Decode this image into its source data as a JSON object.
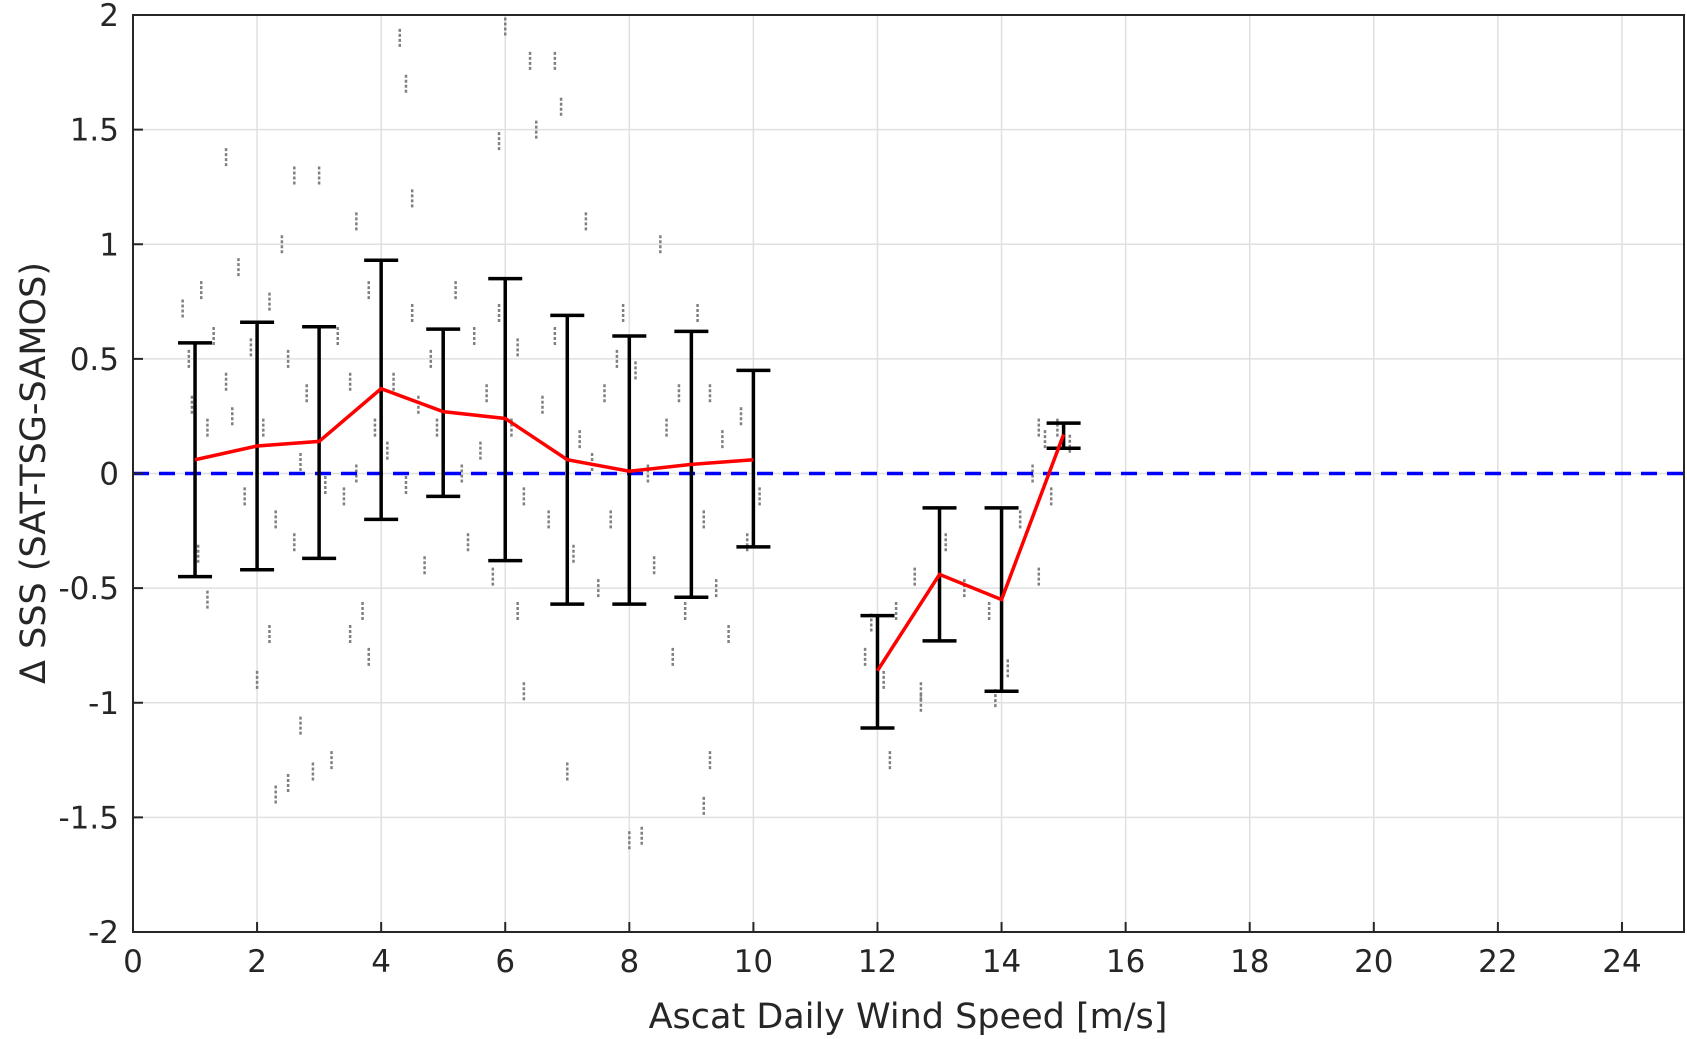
{
  "chart_data": {
    "type": "scatter",
    "xlabel": "Ascat Daily Wind Speed [m/s]",
    "ylabel": "Δ SSS (SAT-TSG-SAMOS)",
    "xlim": [
      0,
      25
    ],
    "ylim": [
      -2,
      2
    ],
    "x_ticks": [
      0,
      2,
      4,
      6,
      8,
      10,
      12,
      14,
      16,
      18,
      20,
      22,
      24
    ],
    "x_tick_labels": [
      "0",
      "2",
      "4",
      "6",
      "8",
      "10",
      "12",
      "14",
      "16",
      "18",
      "20",
      "22",
      "24"
    ],
    "y_ticks": [
      2,
      1.5,
      1,
      0.5,
      0,
      -0.5,
      -1,
      -1.5,
      -2
    ],
    "y_tick_labels": [
      "2",
      "1.5",
      "1",
      "0.5",
      "0",
      "-0.5",
      "-1",
      "-1.5",
      "-2"
    ],
    "grid": true,
    "zero_line": {
      "y": 0,
      "color": "#0000ff",
      "style": "dashed"
    },
    "mean_series": {
      "color": "#ff0000",
      "x": [
        1,
        2,
        3,
        4,
        5,
        6,
        7,
        8,
        9,
        10,
        12,
        13,
        14,
        15
      ],
      "y": [
        0.06,
        0.12,
        0.14,
        0.37,
        0.27,
        0.24,
        0.06,
        0.01,
        0.04,
        0.06,
        -0.86,
        -0.44,
        -0.55,
        0.17
      ]
    },
    "error_bars": {
      "color": "#000000",
      "x": [
        1,
        2,
        3,
        4,
        5,
        6,
        7,
        8,
        9,
        10,
        12,
        13,
        14,
        15
      ],
      "upper": [
        0.57,
        0.66,
        0.64,
        0.93,
        0.63,
        0.85,
        0.69,
        0.6,
        0.62,
        0.45,
        -0.62,
        -0.15,
        -0.15,
        0.22
      ],
      "lower": [
        -0.45,
        -0.42,
        -0.37,
        -0.2,
        -0.1,
        -0.38,
        -0.57,
        -0.57,
        -0.54,
        -0.32,
        -1.11,
        -0.73,
        -0.95,
        0.11
      ]
    },
    "scatter_color": "#808080",
    "scatter_points": [
      [
        0.8,
        0.72
      ],
      [
        0.9,
        0.5
      ],
      [
        0.95,
        0.3
      ],
      [
        1.0,
        -0.2
      ],
      [
        1.05,
        -0.35
      ],
      [
        1.1,
        0.8
      ],
      [
        1.2,
        0.2
      ],
      [
        1.3,
        0.6
      ],
      [
        1.5,
        1.38
      ],
      [
        1.5,
        0.4
      ],
      [
        1.2,
        -0.55
      ],
      [
        1.6,
        0.25
      ],
      [
        1.7,
        0.9
      ],
      [
        1.8,
        -0.1
      ],
      [
        1.9,
        0.55
      ],
      [
        2.1,
        0.2
      ],
      [
        2.2,
        0.75
      ],
      [
        2.3,
        -0.2
      ],
      [
        2.4,
        1.0
      ],
      [
        2.5,
        0.5
      ],
      [
        2.6,
        -0.3
      ],
      [
        2.7,
        0.05
      ],
      [
        2.8,
        0.35
      ],
      [
        2.3,
        -1.4
      ],
      [
        2.5,
        -1.35
      ],
      [
        2.0,
        -0.9
      ],
      [
        2.2,
        -0.7
      ],
      [
        2.6,
        1.3
      ],
      [
        2.7,
        -1.1
      ],
      [
        2.9,
        -1.3
      ],
      [
        3.0,
        0.3
      ],
      [
        3.1,
        -0.05
      ],
      [
        3.2,
        -1.25
      ],
      [
        3.3,
        0.6
      ],
      [
        3.4,
        -0.1
      ],
      [
        3.5,
        0.4
      ],
      [
        3.6,
        0.0
      ],
      [
        3.7,
        -0.6
      ],
      [
        3.8,
        0.8
      ],
      [
        3.9,
        0.2
      ],
      [
        3.5,
        -0.7
      ],
      [
        3.0,
        1.3
      ],
      [
        3.6,
        1.1
      ],
      [
        3.8,
        -0.8
      ],
      [
        4.0,
        0.6
      ],
      [
        4.1,
        0.1
      ],
      [
        4.2,
        0.4
      ],
      [
        4.3,
        1.9
      ],
      [
        4.4,
        1.7
      ],
      [
        4.5,
        1.2
      ],
      [
        4.4,
        -0.05
      ],
      [
        4.5,
        0.7
      ],
      [
        4.6,
        0.3
      ],
      [
        4.7,
        -0.4
      ],
      [
        4.8,
        0.5
      ],
      [
        4.9,
        0.2
      ],
      [
        5.0,
        0.4
      ],
      [
        5.2,
        0.8
      ],
      [
        5.3,
        0.0
      ],
      [
        5.4,
        -0.3
      ],
      [
        5.5,
        0.6
      ],
      [
        5.6,
        0.1
      ],
      [
        5.7,
        0.35
      ],
      [
        5.8,
        -0.45
      ],
      [
        5.9,
        0.7
      ],
      [
        5.9,
        1.45
      ],
      [
        6.0,
        1.95
      ],
      [
        6.1,
        0.2
      ],
      [
        6.2,
        0.55
      ],
      [
        6.3,
        -0.1
      ],
      [
        6.2,
        -0.6
      ],
      [
        6.4,
        1.8
      ],
      [
        6.5,
        1.5
      ],
      [
        6.6,
        0.3
      ],
      [
        6.7,
        -0.2
      ],
      [
        6.8,
        0.6
      ],
      [
        6.8,
        1.8
      ],
      [
        6.9,
        1.6
      ],
      [
        7.0,
        0.4
      ],
      [
        7.1,
        -0.35
      ],
      [
        7.2,
        0.15
      ],
      [
        7.3,
        1.1
      ],
      [
        7.4,
        0.05
      ],
      [
        7.5,
        -0.5
      ],
      [
        7.6,
        0.35
      ],
      [
        7.7,
        -0.2
      ],
      [
        7.8,
        0.5
      ],
      [
        7.9,
        0.7
      ],
      [
        8.0,
        -0.1
      ],
      [
        8.1,
        0.45
      ],
      [
        8.2,
        -1.58
      ],
      [
        8.0,
        -1.6
      ],
      [
        8.3,
        0.0
      ],
      [
        8.4,
        -0.4
      ],
      [
        8.5,
        1.0
      ],
      [
        8.6,
        0.2
      ],
      [
        8.7,
        -0.8
      ],
      [
        8.8,
        0.35
      ],
      [
        8.9,
        -0.6
      ],
      [
        9.0,
        0.1
      ],
      [
        9.1,
        0.7
      ],
      [
        9.2,
        -0.2
      ],
      [
        9.3,
        0.35
      ],
      [
        9.4,
        -0.5
      ],
      [
        9.5,
        0.15
      ],
      [
        9.6,
        -0.7
      ],
      [
        9.8,
        0.25
      ],
      [
        9.9,
        -0.3
      ],
      [
        10.0,
        0.4
      ],
      [
        10.1,
        -0.1
      ],
      [
        9.3,
        -1.25
      ],
      [
        9.2,
        -1.45
      ],
      [
        7.0,
        -1.3
      ],
      [
        6.3,
        -0.95
      ],
      [
        11.8,
        -0.8
      ],
      [
        11.9,
        -0.65
      ],
      [
        12.0,
        -1.0
      ],
      [
        12.1,
        -0.9
      ],
      [
        12.2,
        -1.25
      ],
      [
        12.3,
        -0.6
      ],
      [
        12.6,
        -0.45
      ],
      [
        12.7,
        -0.95
      ],
      [
        13.1,
        -0.3
      ],
      [
        13.4,
        -0.5
      ],
      [
        13.8,
        -0.6
      ],
      [
        14.0,
        -0.3
      ],
      [
        14.1,
        -0.85
      ],
      [
        14.3,
        -0.2
      ],
      [
        14.5,
        0.0
      ],
      [
        14.6,
        0.2
      ],
      [
        14.7,
        0.15
      ],
      [
        15.0,
        0.18
      ],
      [
        15.1,
        0.13
      ],
      [
        14.9,
        0.2
      ],
      [
        13.9,
        -0.98
      ],
      [
        12.7,
        -1.0
      ],
      [
        14.8,
        -0.1
      ],
      [
        14.6,
        -0.45
      ]
    ]
  }
}
